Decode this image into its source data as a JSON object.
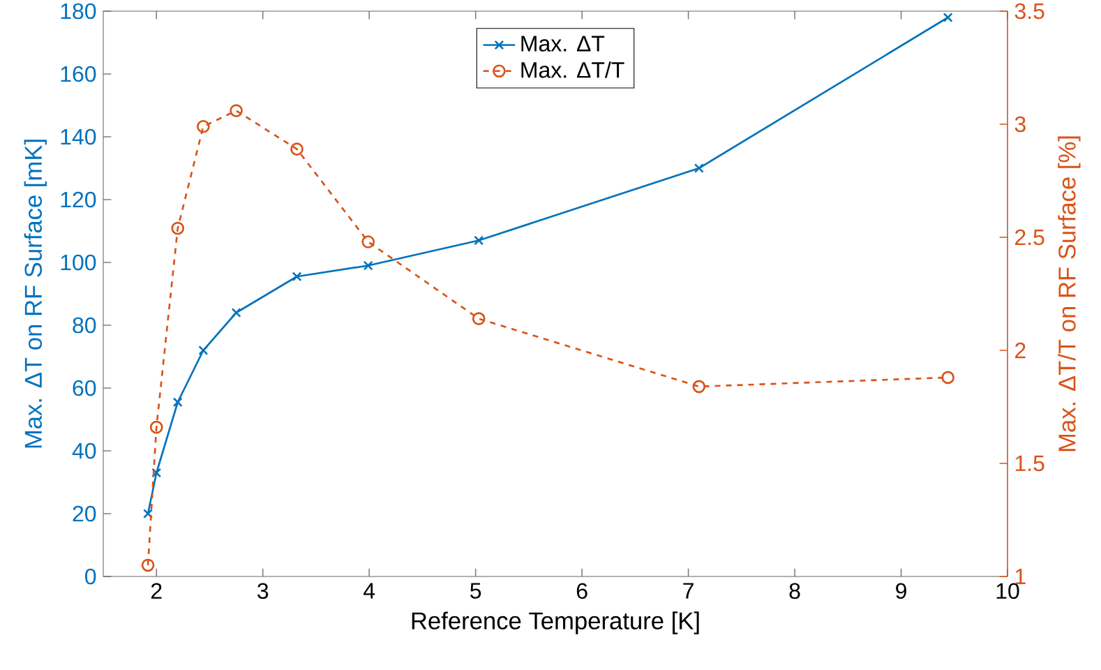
{
  "chart_data": {
    "type": "line",
    "xlabel": "Reference Temperature [K]",
    "ylabel": "Max. ΔT on RF Surface [mK]",
    "y2label": "Max. ΔT/T on RF Surface [%]",
    "x": [
      1.92,
      2.0,
      2.2,
      2.44,
      2.75,
      3.32,
      3.99,
      5.03,
      7.1,
      9.44
    ],
    "series": [
      {
        "name": "Max. ΔT",
        "color": "#0072bd",
        "axis": "y",
        "marker": "cross",
        "line_style": "solid",
        "values": [
          20,
          33,
          55.5,
          72,
          84,
          95.5,
          99,
          107,
          130,
          178
        ]
      },
      {
        "name": "Max. ΔT/T",
        "color": "#d95319",
        "axis": "y2",
        "marker": "circle",
        "line_style": "dashed",
        "values": [
          1.05,
          1.66,
          2.54,
          2.99,
          3.06,
          2.89,
          2.48,
          2.14,
          1.84,
          1.88
        ]
      }
    ],
    "xlim": [
      1.5,
      10
    ],
    "ylim": [
      0,
      180
    ],
    "y2lim": [
      1,
      3.5
    ],
    "xticks": [
      2,
      3,
      4,
      5,
      6,
      7,
      8,
      9,
      10
    ],
    "yticks": [
      0,
      20,
      40,
      60,
      80,
      100,
      120,
      140,
      160,
      180
    ],
    "y2ticks": [
      1,
      1.5,
      2,
      2.5,
      3,
      3.5
    ],
    "legend": "top"
  }
}
